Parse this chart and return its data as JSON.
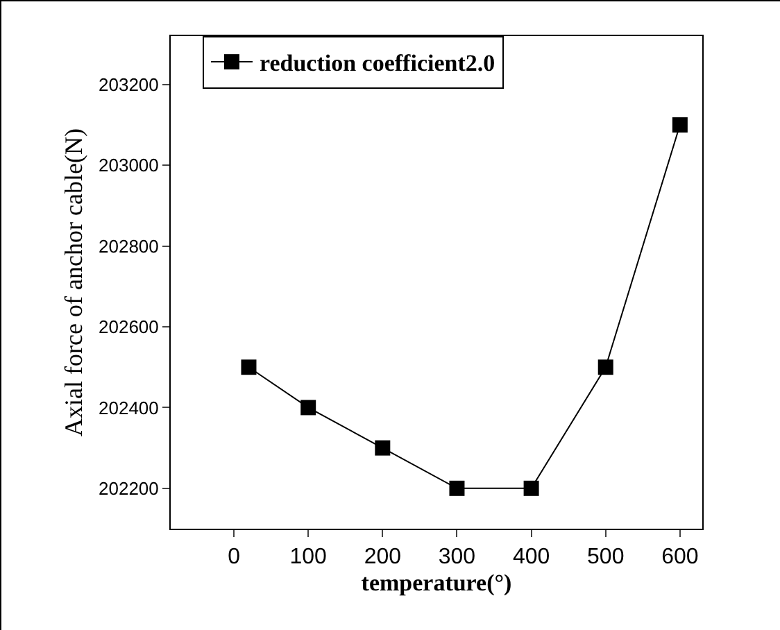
{
  "chart_data": {
    "type": "line",
    "xlabel": "temperature(°)",
    "ylabel": "Axial force of anchor cable(N)",
    "x": [
      20,
      100,
      200,
      300,
      400,
      500,
      600
    ],
    "series": [
      {
        "name": "reduction coefficient2.0",
        "color": "#000000",
        "values": [
          202500,
          202400,
          202300,
          202200,
          202200,
          202500,
          203100
        ]
      }
    ],
    "xlim": [
      -85,
      630
    ],
    "xticks": [
      0,
      100,
      200,
      300,
      400,
      500,
      600
    ],
    "ylim": [
      202100,
      203320
    ],
    "yticks": [
      202200,
      202400,
      202600,
      202800,
      203000,
      203200
    ],
    "marker": "square",
    "line_style": "solid",
    "grid": false,
    "legend": "top"
  }
}
